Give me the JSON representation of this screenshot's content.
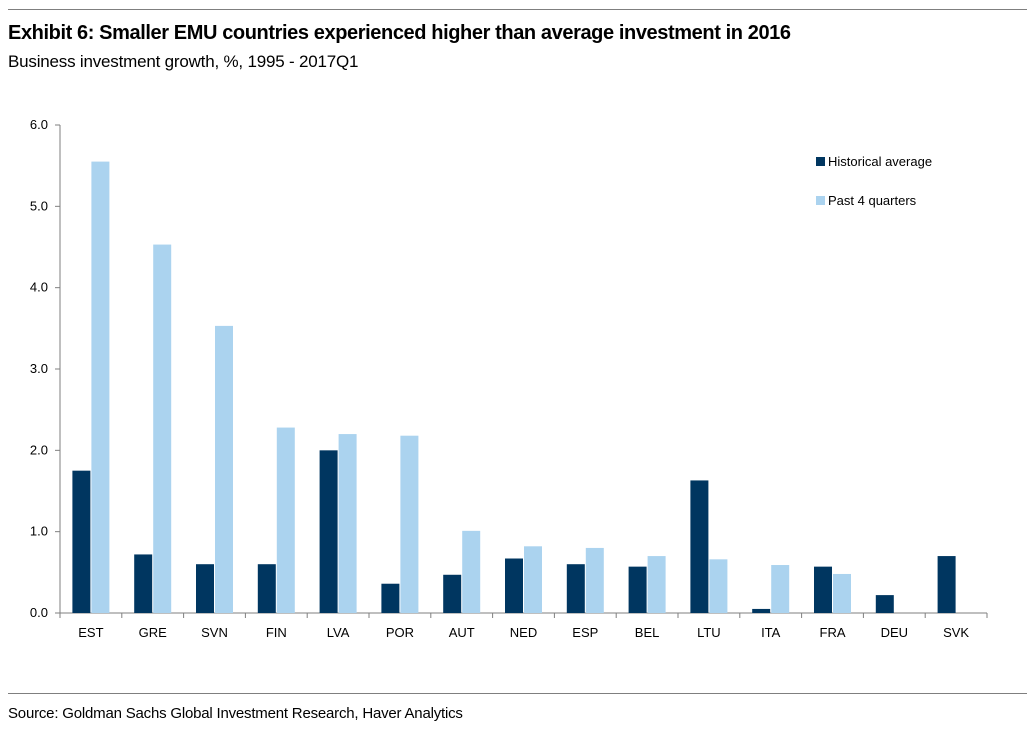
{
  "header": {
    "title": "Exhibit 6: Smaller EMU countries experienced higher than average investment in 2016",
    "subtitle": "Business investment growth, %, 1995 - 2017Q1"
  },
  "footer": {
    "source": "Source: Goldman Sachs Global Investment Research, Haver Analytics"
  },
  "colors": {
    "historical": "#003660",
    "recent": "#abd3ef",
    "axis": "#7f7f7f"
  },
  "chart_data": {
    "type": "bar",
    "categories": [
      "EST",
      "GRE",
      "SVN",
      "FIN",
      "LVA",
      "POR",
      "AUT",
      "NED",
      "ESP",
      "BEL",
      "LTU",
      "ITA",
      "FRA",
      "DEU",
      "SVK"
    ],
    "series": [
      {
        "name": "Historical average",
        "values": [
          1.75,
          0.72,
          0.6,
          0.6,
          2.0,
          0.36,
          0.47,
          0.67,
          0.6,
          0.57,
          1.63,
          0.05,
          0.57,
          0.22,
          0.7
        ]
      },
      {
        "name": "Past 4 quarters",
        "values": [
          5.55,
          4.53,
          3.53,
          2.28,
          2.2,
          2.18,
          1.01,
          0.82,
          0.8,
          0.7,
          0.66,
          0.59,
          0.48,
          0,
          0
        ]
      }
    ],
    "yticks": [
      "0.0",
      "1.0",
      "2.0",
      "3.0",
      "4.0",
      "5.0",
      "6.0"
    ],
    "ylim": [
      0,
      6
    ],
    "legend_position": "top-right",
    "grid": false
  }
}
